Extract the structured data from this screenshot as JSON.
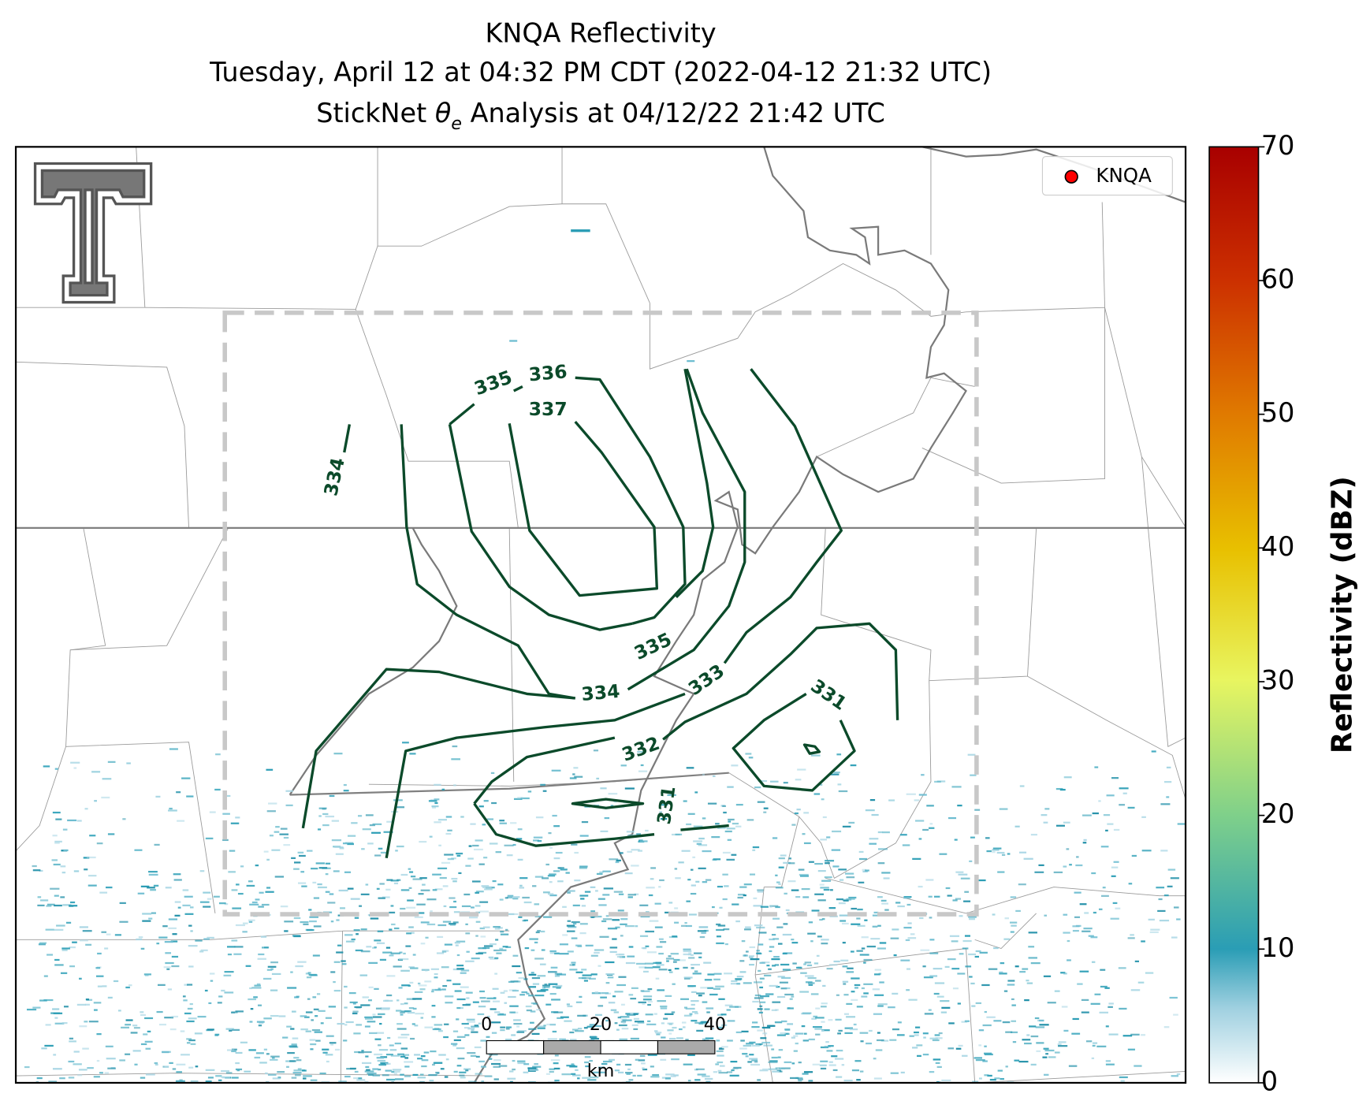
{
  "title": {
    "line1": "KNQA Reflectivity",
    "line2": "Tuesday, April 12 at 04:32 PM CDT (2022-04-12 21:32 UTC)",
    "line3": {
      "prefix": "StickNet ",
      "symbol": "θ",
      "subscript": "e",
      "suffix": " Analysis at 04/12/22 21:42 UTC"
    }
  },
  "legend": {
    "label": "KNQA"
  },
  "contour_labels": [
    334,
    335,
    336,
    337,
    335,
    334,
    333,
    332,
    331,
    331
  ],
  "scale_bar": {
    "ticks": [
      0,
      20,
      40
    ],
    "unit": "km"
  },
  "colorbar": {
    "label": "Reflectivity (dBZ)",
    "lim": [
      0,
      70
    ],
    "ticks": [
      0,
      10,
      20,
      30,
      40,
      50,
      60,
      70
    ]
  }
}
